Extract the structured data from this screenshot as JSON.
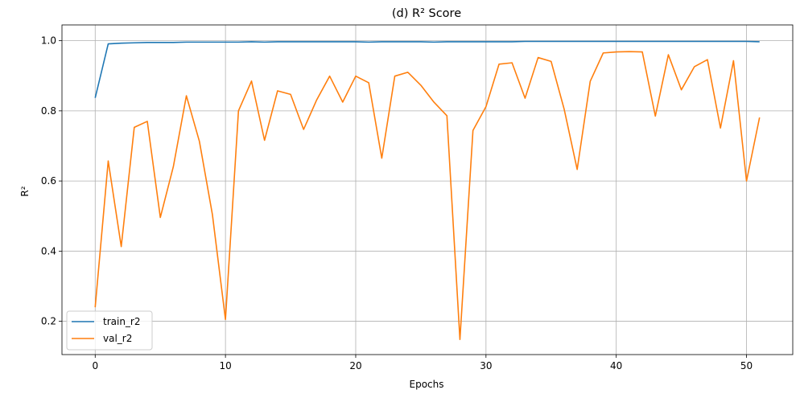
{
  "chart_data": {
    "type": "line",
    "title": "(d) R² Score",
    "xlabel": "Epochs",
    "ylabel": "R²",
    "xlim": [
      -2.55,
      53.55
    ],
    "ylim": [
      0.105,
      1.045
    ],
    "xticks": [
      0,
      10,
      20,
      30,
      40,
      50
    ],
    "yticks": [
      0.2,
      0.4,
      0.6,
      0.8,
      1.0
    ],
    "ytick_labels": [
      "0.2",
      "0.4",
      "0.6",
      "0.8",
      "1.0"
    ],
    "grid": true,
    "legend_position": "lower-left",
    "series": [
      {
        "name": "train_r2",
        "color": "#1f77b4",
        "values": [
          0.837,
          0.991,
          0.993,
          0.994,
          0.995,
          0.995,
          0.995,
          0.996,
          0.996,
          0.996,
          0.996,
          0.996,
          0.997,
          0.996,
          0.997,
          0.997,
          0.997,
          0.997,
          0.997,
          0.997,
          0.997,
          0.996,
          0.997,
          0.997,
          0.997,
          0.997,
          0.996,
          0.997,
          0.997,
          0.997,
          0.997,
          0.997,
          0.997,
          0.998,
          0.998,
          0.998,
          0.998,
          0.998,
          0.998,
          0.998,
          0.998,
          0.998,
          0.998,
          0.998,
          0.998,
          0.998,
          0.998,
          0.998,
          0.998,
          0.998,
          0.998,
          0.997
        ]
      },
      {
        "name": "val_r2",
        "color": "#ff7f0e",
        "values": [
          0.24,
          0.657,
          0.413,
          0.753,
          0.77,
          0.496,
          0.641,
          0.843,
          0.713,
          0.504,
          0.205,
          0.8,
          0.885,
          0.716,
          0.857,
          0.847,
          0.747,
          0.831,
          0.899,
          0.825,
          0.899,
          0.88,
          0.665,
          0.899,
          0.91,
          0.873,
          0.825,
          0.786,
          0.148,
          0.744,
          0.812,
          0.933,
          0.937,
          0.836,
          0.952,
          0.941,
          0.805,
          0.633,
          0.884,
          0.965,
          0.968,
          0.969,
          0.968,
          0.785,
          0.96,
          0.86,
          0.926,
          0.946,
          0.751,
          0.943,
          0.6,
          0.781
        ]
      }
    ]
  }
}
